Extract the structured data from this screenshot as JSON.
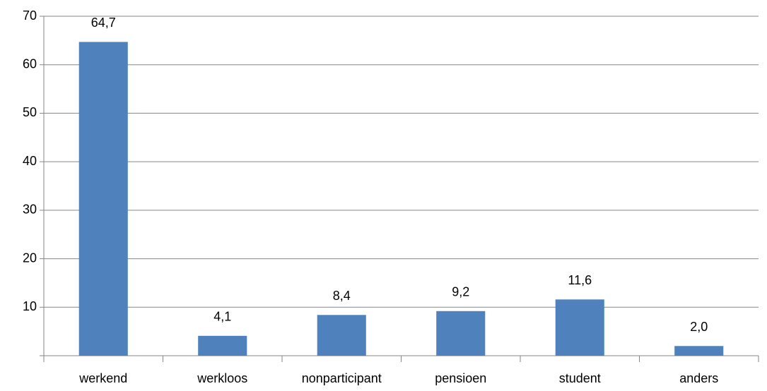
{
  "chart_data": {
    "type": "bar",
    "categories": [
      "werkend",
      "werkloos",
      "nonparticipant",
      "pensioen",
      "student",
      "anders"
    ],
    "values": [
      64.7,
      4.1,
      8.4,
      9.2,
      11.6,
      2.0
    ],
    "value_labels": [
      "64,7",
      "4,1",
      "8,4",
      "9,2",
      "11,6",
      "2,0"
    ],
    "color": "#4f81bd",
    "ylim": [
      0,
      70
    ],
    "yticks": [
      10,
      20,
      30,
      40,
      50,
      60,
      70
    ],
    "grid": true
  }
}
